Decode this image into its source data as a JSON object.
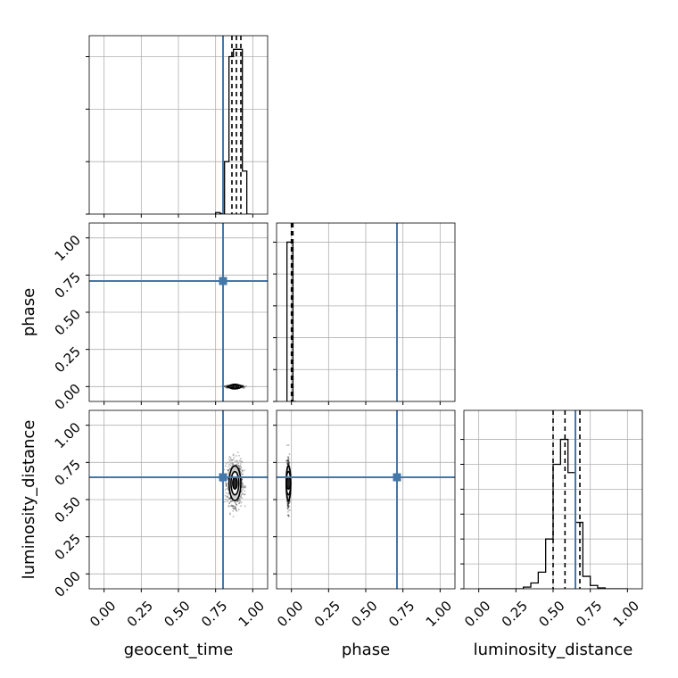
{
  "chart_data": {
    "type": "corner",
    "parameters": [
      "geocent_time",
      "phase",
      "luminosity_distance"
    ],
    "axis_range": [
      -0.1,
      1.1
    ],
    "ticks": [
      0.0,
      0.25,
      0.5,
      0.75,
      1.0
    ],
    "tick_labels": [
      "0.00",
      "0.25",
      "0.50",
      "0.75",
      "1.00"
    ],
    "grid": true,
    "truth_color": "#4477aa",
    "line_color": "#000000",
    "truths": {
      "geocent_time": 0.8,
      "phase": 0.71,
      "luminosity_distance": 0.65
    },
    "marginals": {
      "geocent_time": {
        "bin_edges": [
          0.75,
          0.78,
          0.81,
          0.84,
          0.87,
          0.9,
          0.93,
          0.96,
          0.99
        ],
        "counts": [
          0.03,
          0.01,
          1.0,
          3.0,
          3.14,
          3.14,
          0.82,
          0.0
        ],
        "quantiles": [
          0.86,
          0.89,
          0.92
        ],
        "y_ticks": [
          0,
          1,
          2,
          3
        ],
        "ylim": [
          0,
          3.4
        ]
      },
      "phase": {
        "bin_edges": [
          -0.03,
          -0.01,
          0.01,
          0.03
        ],
        "counts": [
          1.0,
          1.0,
          0.0
        ],
        "quantiles": [
          0.0,
          0.01
        ],
        "y_ticks": [
          0,
          0.2,
          0.4,
          0.6,
          0.8,
          1.0
        ],
        "ylim": [
          0,
          1.12
        ]
      },
      "luminosity_distance": {
        "bin_edges": [
          0.0,
          0.05,
          0.1,
          0.15,
          0.2,
          0.25,
          0.3,
          0.35,
          0.4,
          0.45,
          0.5,
          0.55,
          0.6,
          0.65,
          0.7,
          0.75,
          0.8,
          0.85,
          0.9,
          0.95,
          1.0
        ],
        "counts": [
          0,
          0,
          0,
          0,
          0,
          0,
          0.02,
          0.07,
          0.2,
          0.6,
          1.5,
          1.8,
          1.4,
          0.8,
          0.15,
          0.04,
          0.01,
          0,
          0,
          0
        ],
        "quantiles": [
          0.5,
          0.58,
          0.68
        ],
        "y_ticks": [
          0,
          0.3,
          0.6,
          0.9,
          1.2,
          1.5,
          1.8
        ],
        "ylim": [
          0,
          2.15
        ]
      }
    },
    "joint": [
      {
        "x": "geocent_time",
        "y": "phase",
        "center": [
          0.88,
          0.0
        ],
        "spread": [
          0.022,
          0.004
        ],
        "level_scale": [
          0.6,
          1.2,
          1.8
        ]
      },
      {
        "x": "geocent_time",
        "y": "luminosity_distance",
        "center": [
          0.88,
          0.61
        ],
        "spread": [
          0.022,
          0.065
        ],
        "level_scale": [
          0.6,
          1.2,
          1.8
        ]
      },
      {
        "x": "phase",
        "y": "luminosity_distance",
        "center": [
          -0.02,
          0.61
        ],
        "spread": [
          0.004,
          0.065
        ],
        "level_scale": [
          0.6,
          1.2,
          1.8
        ]
      }
    ]
  }
}
